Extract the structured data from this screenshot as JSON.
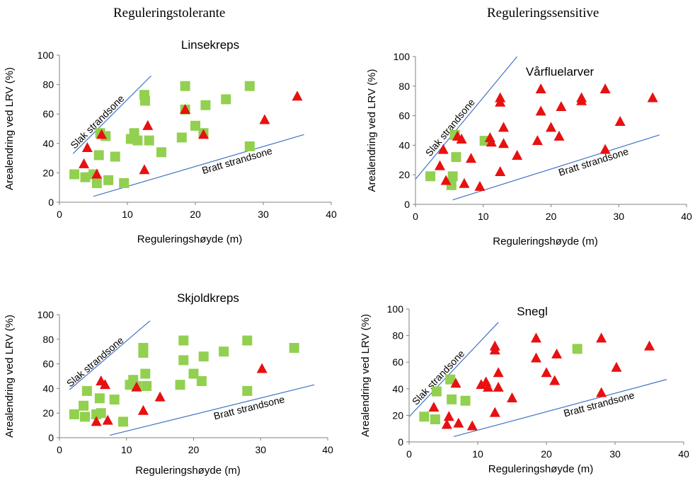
{
  "headers": {
    "left": "Reguleringstolerante",
    "right": "Reguleringssensitive"
  },
  "colors": {
    "square": "#92d050",
    "triangle": "#e81010",
    "line": "#4472c4"
  },
  "chart_data": [
    {
      "type": "scatter",
      "title": "Linsekreps",
      "xlabel": "Reguleringshøyde (m)",
      "ylabel": "Arealendring ved LRV (%)",
      "xlim": [
        0,
        40
      ],
      "ylim": [
        0,
        100
      ],
      "xticks": [
        0,
        10,
        20,
        30,
        40
      ],
      "yticks": [
        0,
        20,
        40,
        60,
        80,
        100
      ],
      "grid": false,
      "series": [
        {
          "marker": "square",
          "points": [
            [
              2.2,
              19
            ],
            [
              3.8,
              17
            ],
            [
              5,
              19
            ],
            [
              5.5,
              13
            ],
            [
              5.8,
              32
            ],
            [
              6,
              47
            ],
            [
              6.8,
              45
            ],
            [
              7.2,
              15
            ],
            [
              8.2,
              31
            ],
            [
              9.5,
              13
            ],
            [
              10.5,
              43
            ],
            [
              11,
              47
            ],
            [
              11.5,
              42
            ],
            [
              12.5,
              73
            ],
            [
              12.6,
              69
            ],
            [
              13.2,
              42
            ],
            [
              15,
              34
            ],
            [
              18,
              44
            ],
            [
              18.5,
              79
            ],
            [
              18.5,
              63
            ],
            [
              20,
              52
            ],
            [
              21.2,
              47
            ],
            [
              21.5,
              66
            ],
            [
              24.5,
              70
            ],
            [
              28,
              79
            ],
            [
              28,
              38
            ]
          ]
        },
        {
          "marker": "triangle",
          "points": [
            [
              3.6,
              26
            ],
            [
              4.1,
              37
            ],
            [
              5.5,
              19
            ],
            [
              6.2,
              46
            ],
            [
              12.5,
              22
            ],
            [
              13,
              52
            ],
            [
              18.5,
              63
            ],
            [
              21.2,
              46
            ],
            [
              30.2,
              56
            ],
            [
              35,
              72
            ]
          ]
        }
      ],
      "lines": [
        {
          "label": "Slak strandsone",
          "from": [
            2,
            33
          ],
          "to": [
            13.5,
            86
          ]
        },
        {
          "label": "Bratt strandsone",
          "from": [
            5,
            4
          ],
          "to": [
            36,
            46
          ]
        }
      ]
    },
    {
      "type": "scatter",
      "title": "Vårfluelarver",
      "xlabel": "Reguleringshøyde (m)",
      "ylabel": "Arealendring ved LRV (%)",
      "xlim": [
        0,
        40
      ],
      "ylim": [
        0,
        100
      ],
      "xticks": [
        0,
        10,
        20,
        30,
        40
      ],
      "yticks": [
        0,
        20,
        40,
        60,
        80,
        100
      ],
      "grid": false,
      "series": [
        {
          "marker": "square",
          "points": [
            [
              2.2,
              19
            ],
            [
              5.3,
              13
            ],
            [
              5.5,
              19
            ],
            [
              5.8,
              47
            ],
            [
              6,
              32
            ],
            [
              10.2,
              43
            ]
          ]
        },
        {
          "marker": "triangle",
          "points": [
            [
              3.6,
              26
            ],
            [
              4.1,
              37
            ],
            [
              4.5,
              16
            ],
            [
              6.2,
              46
            ],
            [
              6.8,
              44
            ],
            [
              7.2,
              14
            ],
            [
              8.2,
              31
            ],
            [
              9.5,
              12
            ],
            [
              11,
              45
            ],
            [
              11.2,
              42
            ],
            [
              12.5,
              72
            ],
            [
              12.5,
              69
            ],
            [
              12.5,
              22
            ],
            [
              13,
              52
            ],
            [
              13,
              41
            ],
            [
              15,
              33
            ],
            [
              18,
              43
            ],
            [
              18.5,
              78
            ],
            [
              18.5,
              63
            ],
            [
              20,
              52
            ],
            [
              21.2,
              46
            ],
            [
              21.5,
              66
            ],
            [
              24.5,
              72
            ],
            [
              24.5,
              70
            ],
            [
              28,
              78
            ],
            [
              28,
              37
            ],
            [
              30.2,
              56
            ],
            [
              35,
              72
            ]
          ]
        }
      ],
      "lines": [
        {
          "label": "Slak strandsone",
          "from": [
            0,
            17
          ],
          "to": [
            15,
            100
          ]
        },
        {
          "label": "Bratt strandsone",
          "from": [
            5.5,
            3
          ],
          "to": [
            36,
            47
          ]
        }
      ]
    },
    {
      "type": "scatter",
      "title": "Skjoldkreps",
      "xlabel": "Reguleringshøyde (m)",
      "ylabel": "Arealendring ved LRV (%)",
      "xlim": [
        0,
        40
      ],
      "ylim": [
        0,
        100
      ],
      "xticks": [
        0,
        10,
        20,
        30,
        40
      ],
      "yticks": [
        0,
        20,
        40,
        60,
        80,
        100
      ],
      "grid": false,
      "series": [
        {
          "marker": "square",
          "points": [
            [
              2.2,
              19
            ],
            [
              3.6,
              26
            ],
            [
              3.8,
              17
            ],
            [
              4.1,
              38
            ],
            [
              5.5,
              19
            ],
            [
              6,
              32
            ],
            [
              6.2,
              20
            ],
            [
              8.2,
              31
            ],
            [
              9.5,
              13
            ],
            [
              10.5,
              43
            ],
            [
              11,
              47
            ],
            [
              11.5,
              42
            ],
            [
              12.5,
              73
            ],
            [
              12.5,
              69
            ],
            [
              12.8,
              52
            ],
            [
              13,
              42
            ],
            [
              18,
              43
            ],
            [
              18.5,
              79
            ],
            [
              18.5,
              63
            ],
            [
              20,
              52
            ],
            [
              21.2,
              46
            ],
            [
              21.5,
              66
            ],
            [
              24.5,
              70
            ],
            [
              28,
              79
            ],
            [
              28,
              38
            ],
            [
              35,
              73
            ]
          ]
        },
        {
          "marker": "triangle",
          "points": [
            [
              5.5,
              13
            ],
            [
              6.2,
              46
            ],
            [
              6.8,
              43
            ],
            [
              7.2,
              14
            ],
            [
              11.5,
              41
            ],
            [
              12.5,
              22
            ],
            [
              15,
              33
            ],
            [
              30.2,
              56
            ]
          ]
        }
      ],
      "lines": [
        {
          "label": "Slak strandsone",
          "from": [
            1.5,
            39
          ],
          "to": [
            13.5,
            95
          ]
        },
        {
          "label": "Bratt strandsone",
          "from": [
            7.5,
            2
          ],
          "to": [
            38,
            43
          ]
        }
      ]
    },
    {
      "type": "scatter",
      "title": "Snegl",
      "xlabel": "Reguleringshøyde (m)",
      "ylabel": "Arealendring ved LRV (%)",
      "xlim": [
        0,
        40
      ],
      "ylim": [
        0,
        100
      ],
      "xticks": [
        0,
        10,
        20,
        30,
        40
      ],
      "yticks": [
        0,
        20,
        40,
        60,
        80,
        100
      ],
      "grid": false,
      "series": [
        {
          "marker": "square",
          "points": [
            [
              2.2,
              19
            ],
            [
              3.8,
              17
            ],
            [
              4,
              38
            ],
            [
              6,
              47
            ],
            [
              6.2,
              32
            ],
            [
              8.2,
              31
            ],
            [
              24.5,
              70
            ]
          ]
        },
        {
          "marker": "triangle",
          "points": [
            [
              3.6,
              26
            ],
            [
              5.5,
              13
            ],
            [
              5.8,
              19
            ],
            [
              6.8,
              44
            ],
            [
              7.2,
              14
            ],
            [
              9.2,
              12
            ],
            [
              10.5,
              43
            ],
            [
              11.2,
              45
            ],
            [
              11.5,
              41
            ],
            [
              12.5,
              72
            ],
            [
              12.5,
              69
            ],
            [
              12.5,
              22
            ],
            [
              13,
              52
            ],
            [
              13,
              41
            ],
            [
              15,
              33
            ],
            [
              18.5,
              78
            ],
            [
              18.5,
              63
            ],
            [
              20,
              52
            ],
            [
              21.2,
              46
            ],
            [
              21.5,
              66
            ],
            [
              28,
              78
            ],
            [
              28,
              37
            ],
            [
              30.2,
              56
            ],
            [
              35,
              72
            ]
          ]
        }
      ],
      "lines": [
        {
          "label": "Slak strandsone",
          "from": [
            0,
            19
          ],
          "to": [
            13,
            90
          ]
        },
        {
          "label": "Bratt strandsone",
          "from": [
            6.5,
            4
          ],
          "to": [
            37.5,
            47
          ]
        }
      ]
    }
  ]
}
